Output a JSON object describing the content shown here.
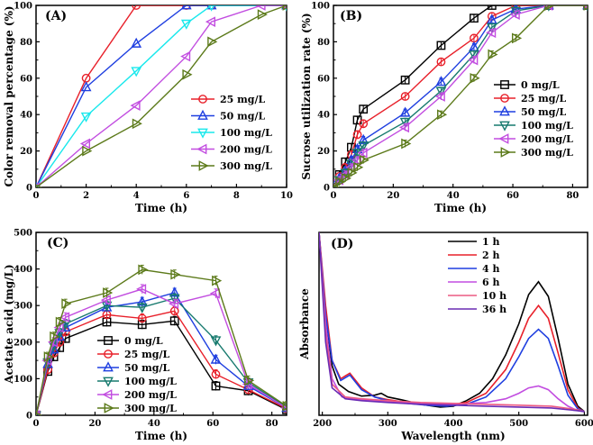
{
  "colors": {
    "black": "#000000",
    "red": "#e8202a",
    "blue": "#1f3fe0",
    "cyan": "#19e8ec",
    "purple": "#c24de0",
    "olive": "#5c7a1a",
    "teal": "#177a6e",
    "violet": "#9a3fdc",
    "dark_violet": "#6a2bb3",
    "pink": "#ec5a82"
  },
  "chart_data": [
    {
      "id": "A",
      "type": "line",
      "label": "(A)",
      "xlabel": "Time (h)",
      "ylabel": "Color removal percentage (%)",
      "xlim": [
        0,
        10
      ],
      "ylim": [
        0,
        100
      ],
      "xticks": [
        "0",
        "2",
        "4",
        "6",
        "8",
        "10"
      ],
      "yticks": [
        "0",
        "20",
        "40",
        "60",
        "80",
        "100"
      ],
      "legend_position": "center-right",
      "series": [
        {
          "name": "25 mg/L",
          "color": "#e8202a",
          "marker": "circle",
          "x": [
            0,
            2,
            4,
            6,
            7,
            10
          ],
          "y": [
            0,
            60,
            100,
            100,
            100,
            100
          ]
        },
        {
          "name": "50 mg/L",
          "color": "#1f3fe0",
          "marker": "triangle-up",
          "x": [
            0,
            2,
            4,
            6,
            7,
            10
          ],
          "y": [
            0,
            55,
            79,
            100,
            100,
            100
          ]
        },
        {
          "name": "100 mg/L",
          "color": "#19e8ec",
          "marker": "triangle-down",
          "x": [
            0,
            2,
            4,
            6,
            7,
            10
          ],
          "y": [
            0,
            39,
            64,
            90,
            100,
            100
          ]
        },
        {
          "name": "200 mg/L",
          "color": "#c24de0",
          "marker": "triangle-left",
          "x": [
            0,
            2,
            4,
            6,
            7,
            9,
            10
          ],
          "y": [
            0,
            24,
            45,
            72,
            91,
            100,
            100
          ]
        },
        {
          "name": "300 mg/L",
          "color": "#5c7a1a",
          "marker": "triangle-right",
          "x": [
            0,
            2,
            4,
            6,
            7,
            9,
            10
          ],
          "y": [
            0,
            20,
            35,
            62,
            80,
            95,
            100
          ]
        }
      ]
    },
    {
      "id": "B",
      "type": "line",
      "label": "(B)",
      "xlabel": "Time (h)",
      "ylabel": "Sucrose utilization rate (%)",
      "xlim": [
        0,
        85
      ],
      "ylim": [
        0,
        100
      ],
      "xticks": [
        "0",
        "20",
        "40",
        "60",
        "80"
      ],
      "yticks": [
        "0",
        "20",
        "40",
        "60",
        "80",
        "100"
      ],
      "legend_position": "center-right",
      "series": [
        {
          "name": "0   mg/L",
          "color": "#000000",
          "marker": "square",
          "x": [
            0,
            2,
            4,
            6,
            8,
            10,
            24,
            36,
            47,
            53,
            72,
            85
          ],
          "y": [
            0,
            7,
            14,
            22,
            37,
            43,
            59,
            78,
            93,
            100,
            100,
            100
          ]
        },
        {
          "name": "25  mg/L",
          "color": "#e8202a",
          "marker": "circle",
          "x": [
            0,
            2,
            4,
            6,
            8,
            10,
            24,
            36,
            47,
            53,
            61,
            72,
            85
          ],
          "y": [
            0,
            6,
            11,
            18,
            29,
            35,
            50,
            69,
            82,
            94,
            100,
            100,
            100
          ]
        },
        {
          "name": "50  mg/L",
          "color": "#1f3fe0",
          "marker": "triangle-up",
          "x": [
            0,
            2,
            4,
            6,
            8,
            10,
            24,
            36,
            47,
            53,
            61,
            72,
            85
          ],
          "y": [
            0,
            5,
            9,
            15,
            21,
            26,
            41,
            58,
            77,
            92,
            98,
            100,
            100
          ]
        },
        {
          "name": "100 mg/L",
          "color": "#177a6e",
          "marker": "triangle-down",
          "x": [
            0,
            2,
            4,
            6,
            8,
            10,
            24,
            36,
            47,
            53,
            61,
            72,
            85
          ],
          "y": [
            0,
            4,
            8,
            13,
            19,
            23,
            36,
            53,
            73,
            88,
            97,
            100,
            100
          ]
        },
        {
          "name": "200 mg/L",
          "color": "#c24de0",
          "marker": "triangle-left",
          "x": [
            0,
            2,
            4,
            6,
            8,
            10,
            24,
            36,
            47,
            53,
            61,
            72,
            85
          ],
          "y": [
            0,
            4,
            7,
            11,
            15,
            19,
            33,
            50,
            70,
            85,
            95,
            100,
            100
          ]
        },
        {
          "name": "300 mg/L",
          "color": "#5c7a1a",
          "marker": "triangle-right",
          "x": [
            0,
            2,
            4,
            6,
            8,
            10,
            24,
            36,
            47,
            53,
            61,
            72,
            85
          ],
          "y": [
            0,
            3,
            5,
            8,
            11,
            15,
            24,
            40,
            60,
            73,
            82,
            100,
            100
          ]
        }
      ]
    },
    {
      "id": "C",
      "type": "line",
      "label": "(C)",
      "xlabel": "Time (h)",
      "ylabel": "Acetate acid (mg/L)",
      "xlim": [
        0,
        85
      ],
      "ylim": [
        0,
        500
      ],
      "xticks": [
        "0",
        "20",
        "40",
        "60",
        "80"
      ],
      "yticks": [
        "0",
        "100",
        "200",
        "300",
        "400",
        "500"
      ],
      "legend_position": "bottom-left",
      "series": [
        {
          "name": "0   mg/L",
          "color": "#000000",
          "marker": "square",
          "x": [
            0,
            4,
            6,
            8,
            10,
            24,
            36,
            47,
            61,
            72,
            85
          ],
          "y": [
            0,
            120,
            160,
            185,
            210,
            255,
            248,
            258,
            80,
            67,
            15
          ]
        },
        {
          "name": "25  mg/L",
          "color": "#e8202a",
          "marker": "circle",
          "x": [
            0,
            4,
            6,
            8,
            10,
            24,
            36,
            47,
            61,
            72,
            85
          ],
          "y": [
            0,
            125,
            170,
            200,
            228,
            275,
            265,
            285,
            112,
            70,
            18
          ]
        },
        {
          "name": "50  mg/L",
          "color": "#1f3fe0",
          "marker": "triangle-up",
          "x": [
            0,
            4,
            6,
            8,
            10,
            24,
            36,
            47,
            61,
            72,
            85
          ],
          "y": [
            0,
            140,
            180,
            215,
            240,
            295,
            310,
            335,
            152,
            80,
            20
          ]
        },
        {
          "name": "100 mg/L",
          "color": "#177a6e",
          "marker": "triangle-down",
          "x": [
            0,
            4,
            6,
            8,
            10,
            24,
            36,
            47,
            61,
            72,
            85
          ],
          "y": [
            0,
            145,
            190,
            225,
            250,
            300,
            295,
            320,
            205,
            90,
            22
          ]
        },
        {
          "name": "200 mg/L",
          "color": "#c24de0",
          "marker": "triangle-left",
          "x": [
            0,
            4,
            6,
            8,
            10,
            24,
            36,
            47,
            61,
            72,
            85
          ],
          "y": [
            0,
            150,
            200,
            240,
            268,
            315,
            345,
            305,
            333,
            85,
            20
          ]
        },
        {
          "name": "300 mg/L",
          "color": "#5c7a1a",
          "marker": "triangle-right",
          "x": [
            0,
            4,
            6,
            8,
            10,
            24,
            36,
            47,
            61,
            72,
            85
          ],
          "y": [
            0,
            160,
            215,
            255,
            305,
            335,
            398,
            385,
            368,
            95,
            25
          ]
        }
      ]
    },
    {
      "id": "D",
      "type": "line",
      "label": "(D)",
      "xlabel": "Wavelength (nm)",
      "ylabel": "Absorbance",
      "xlim": [
        195,
        605
      ],
      "ylim": [
        0,
        1
      ],
      "xticks": [
        "200",
        "300",
        "400",
        "500",
        "600"
      ],
      "yticks": [],
      "legend_position": "top-left",
      "series": [
        {
          "name": "1  h",
          "color": "#000000",
          "x": [
            195,
            205,
            215,
            225,
            240,
            260,
            280,
            290,
            300,
            320,
            350,
            380,
            400,
            420,
            440,
            460,
            480,
            500,
            515,
            530,
            545,
            560,
            575,
            590,
            600
          ],
          "y": [
            1.0,
            0.55,
            0.27,
            0.17,
            0.13,
            0.105,
            0.11,
            0.12,
            0.1,
            0.085,
            0.06,
            0.045,
            0.05,
            0.08,
            0.12,
            0.2,
            0.33,
            0.5,
            0.66,
            0.73,
            0.65,
            0.42,
            0.17,
            0.05,
            0.02
          ]
        },
        {
          "name": "2  h",
          "color": "#e8202a",
          "x": [
            195,
            205,
            215,
            228,
            242,
            260,
            280,
            300,
            330,
            360,
            390,
            420,
            450,
            480,
            500,
            515,
            530,
            545,
            560,
            575,
            590,
            600
          ],
          "y": [
            1.0,
            0.6,
            0.3,
            0.2,
            0.23,
            0.15,
            0.1,
            0.085,
            0.07,
            0.06,
            0.055,
            0.07,
            0.12,
            0.25,
            0.4,
            0.53,
            0.6,
            0.53,
            0.34,
            0.14,
            0.04,
            0.02
          ]
        },
        {
          "name": "4  h",
          "color": "#1f3fe0",
          "x": [
            195,
            205,
            215,
            228,
            242,
            260,
            280,
            300,
            330,
            360,
            390,
            420,
            450,
            480,
            500,
            515,
            530,
            545,
            560,
            575,
            590,
            600
          ],
          "y": [
            1.0,
            0.55,
            0.3,
            0.19,
            0.22,
            0.14,
            0.1,
            0.08,
            0.065,
            0.055,
            0.05,
            0.06,
            0.1,
            0.2,
            0.32,
            0.42,
            0.47,
            0.42,
            0.27,
            0.11,
            0.035,
            0.02
          ]
        },
        {
          "name": "6  h",
          "color": "#c24de0",
          "x": [
            195,
            205,
            215,
            230,
            260,
            300,
            350,
            400,
            450,
            480,
            500,
            515,
            530,
            545,
            560,
            575,
            590,
            600
          ],
          "y": [
            1.0,
            0.5,
            0.2,
            0.1,
            0.085,
            0.075,
            0.065,
            0.06,
            0.07,
            0.09,
            0.12,
            0.15,
            0.16,
            0.14,
            0.09,
            0.05,
            0.025,
            0.02
          ]
        },
        {
          "name": "10  h",
          "color": "#ec5a82",
          "x": [
            195,
            205,
            215,
            235,
            260,
            300,
            350,
            400,
            450,
            500,
            550,
            590,
            600
          ],
          "y": [
            1.0,
            0.45,
            0.17,
            0.1,
            0.09,
            0.08,
            0.07,
            0.065,
            0.06,
            0.055,
            0.05,
            0.03,
            0.02
          ]
        },
        {
          "name": "36  h",
          "color": "#6a2bb3",
          "x": [
            195,
            205,
            215,
            235,
            260,
            300,
            350,
            400,
            450,
            500,
            550,
            590,
            600
          ],
          "y": [
            1.0,
            0.4,
            0.15,
            0.09,
            0.08,
            0.07,
            0.06,
            0.055,
            0.05,
            0.045,
            0.04,
            0.025,
            0.02
          ]
        }
      ]
    }
  ]
}
